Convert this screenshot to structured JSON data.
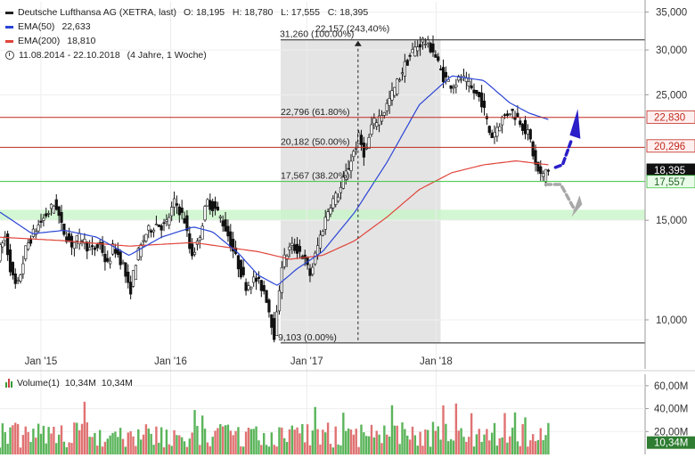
{
  "legend": {
    "title": "Deutsche Lufthansa AG (XETRA, last)",
    "ohlc": "O: 18,195   H: 18,780   L: 17,555   C: 18,395",
    "ema50_label": "EMA(50)",
    "ema50_value": "22,633",
    "ema200_label": "EMA(200)",
    "ema200_value": "18,810",
    "period": "11.08.2014 - 22.10.2018",
    "period_note": "(4 Jahre, 1 Woche)"
  },
  "volume_legend": {
    "label": "Volume(1)",
    "value1": "10,34M",
    "value2": "10,34M"
  },
  "colors": {
    "ema50": "#2a45d6",
    "ema200": "#e0443a",
    "fib_line": "#c0281e",
    "support_line": "#3cc43c",
    "support_zone": "#c8f5c8",
    "up_volume": "#5ab45a",
    "down_volume": "#e07272",
    "arrow_blue": "#2a1fc8",
    "arrow_gray": "#a8a8a8"
  },
  "chart_data": {
    "type": "candlestick",
    "x_tick_labels": [
      "Jan '15",
      "Jan '16",
      "Jan '17",
      "Jan '18"
    ],
    "y_tick_labels": [
      "35,000",
      "30,000",
      "25,000",
      "15,000",
      "10,000"
    ],
    "y_ticks": [
      35,
      30,
      25,
      15,
      10
    ],
    "ylim": [
      8.25,
      36.5
    ],
    "y_scale": "log",
    "price_badges": [
      {
        "label": "22,830",
        "value": 22.83,
        "style": "fib"
      },
      {
        "label": "20,296",
        "value": 20.296,
        "style": "fib"
      },
      {
        "label": "18,395",
        "value": 18.395,
        "style": "last"
      },
      {
        "label": "17,557",
        "value": 17.557,
        "style": "support"
      }
    ],
    "fibonacci": {
      "high_label": "31,260 (100.00%)",
      "low_label": "9,103 (0.00%)",
      "gain_label": "22,157 (243,40%)",
      "levels": [
        {
          "label": "22,796 (61.80%)",
          "value": 22.796
        },
        {
          "label": "20,182 (50.00%)",
          "value": 20.182
        },
        {
          "label": "17,567 (38.20%)",
          "value": 17.567
        }
      ],
      "high": 31.26,
      "low": 9.103
    },
    "support_zone": [
      15.0,
      15.65
    ],
    "volume_axis": {
      "labels": [
        "60,00M",
        "40,00M",
        "20,00M"
      ],
      "values": [
        60,
        40,
        20
      ],
      "max": 70,
      "last_badge": "10,34M"
    },
    "price_anchors": [
      [
        0,
        13.0
      ],
      [
        0.012,
        14.0
      ],
      [
        0.022,
        12.0
      ],
      [
        0.03,
        11.3
      ],
      [
        0.045,
        13.5
      ],
      [
        0.06,
        14.5
      ],
      [
        0.075,
        15.3
      ],
      [
        0.09,
        16.1
      ],
      [
        0.1,
        14.5
      ],
      [
        0.115,
        13.6
      ],
      [
        0.13,
        14.0
      ],
      [
        0.145,
        13.2
      ],
      [
        0.16,
        13.6
      ],
      [
        0.17,
        12.4
      ],
      [
        0.18,
        13.5
      ],
      [
        0.195,
        12.5
      ],
      [
        0.205,
        11.1
      ],
      [
        0.215,
        12.8
      ],
      [
        0.23,
        14.2
      ],
      [
        0.245,
        14.8
      ],
      [
        0.26,
        14.6
      ],
      [
        0.275,
        16.2
      ],
      [
        0.29,
        15.0
      ],
      [
        0.3,
        13.0
      ],
      [
        0.31,
        13.6
      ],
      [
        0.325,
        16.2
      ],
      [
        0.34,
        15.6
      ],
      [
        0.355,
        14.4
      ],
      [
        0.37,
        12.8
      ],
      [
        0.385,
        11.5
      ],
      [
        0.4,
        11.8
      ],
      [
        0.415,
        11.2
      ],
      [
        0.43,
        9.3
      ],
      [
        0.44,
        12.5
      ],
      [
        0.455,
        13.5
      ],
      [
        0.47,
        13.2
      ],
      [
        0.485,
        12.0
      ],
      [
        0.5,
        14.0
      ],
      [
        0.515,
        16.0
      ],
      [
        0.53,
        16.8
      ],
      [
        0.545,
        18.8
      ],
      [
        0.56,
        21.0
      ],
      [
        0.57,
        19.5
      ],
      [
        0.58,
        22.0
      ],
      [
        0.6,
        23.5
      ],
      [
        0.615,
        25.5
      ],
      [
        0.63,
        28.0
      ],
      [
        0.645,
        30.0
      ],
      [
        0.66,
        31.2
      ],
      [
        0.675,
        30.0
      ],
      [
        0.69,
        27.0
      ],
      [
        0.705,
        26.0
      ],
      [
        0.72,
        26.8
      ],
      [
        0.735,
        25.5
      ],
      [
        0.75,
        24.5
      ],
      [
        0.765,
        21.0
      ],
      [
        0.78,
        22.5
      ],
      [
        0.795,
        23.5
      ],
      [
        0.81,
        22.5
      ],
      [
        0.825,
        21.0
      ],
      [
        0.835,
        18.5
      ],
      [
        0.845,
        17.8
      ],
      [
        0.85,
        18.4
      ]
    ],
    "ema50_anchors": [
      [
        0,
        15.5
      ],
      [
        0.05,
        14.2
      ],
      [
        0.1,
        14.4
      ],
      [
        0.15,
        14.0
      ],
      [
        0.2,
        13.0
      ],
      [
        0.25,
        14.0
      ],
      [
        0.3,
        14.6
      ],
      [
        0.33,
        14.3
      ],
      [
        0.37,
        13.1
      ],
      [
        0.4,
        12.0
      ],
      [
        0.43,
        11.5
      ],
      [
        0.46,
        12.3
      ],
      [
        0.5,
        13.2
      ],
      [
        0.55,
        15.5
      ],
      [
        0.6,
        19.0
      ],
      [
        0.65,
        24.0
      ],
      [
        0.7,
        27.0
      ],
      [
        0.75,
        26.5
      ],
      [
        0.79,
        24.2
      ],
      [
        0.82,
        23.2
      ],
      [
        0.85,
        22.6
      ]
    ],
    "ema200_anchors": [
      [
        0,
        14.0
      ],
      [
        0.1,
        13.8
      ],
      [
        0.2,
        13.5
      ],
      [
        0.3,
        13.7
      ],
      [
        0.4,
        13.2
      ],
      [
        0.45,
        12.8
      ],
      [
        0.5,
        13.0
      ],
      [
        0.55,
        13.8
      ],
      [
        0.6,
        15.2
      ],
      [
        0.65,
        17.0
      ],
      [
        0.7,
        18.2
      ],
      [
        0.75,
        18.8
      ],
      [
        0.8,
        19.1
      ],
      [
        0.85,
        18.8
      ]
    ]
  }
}
